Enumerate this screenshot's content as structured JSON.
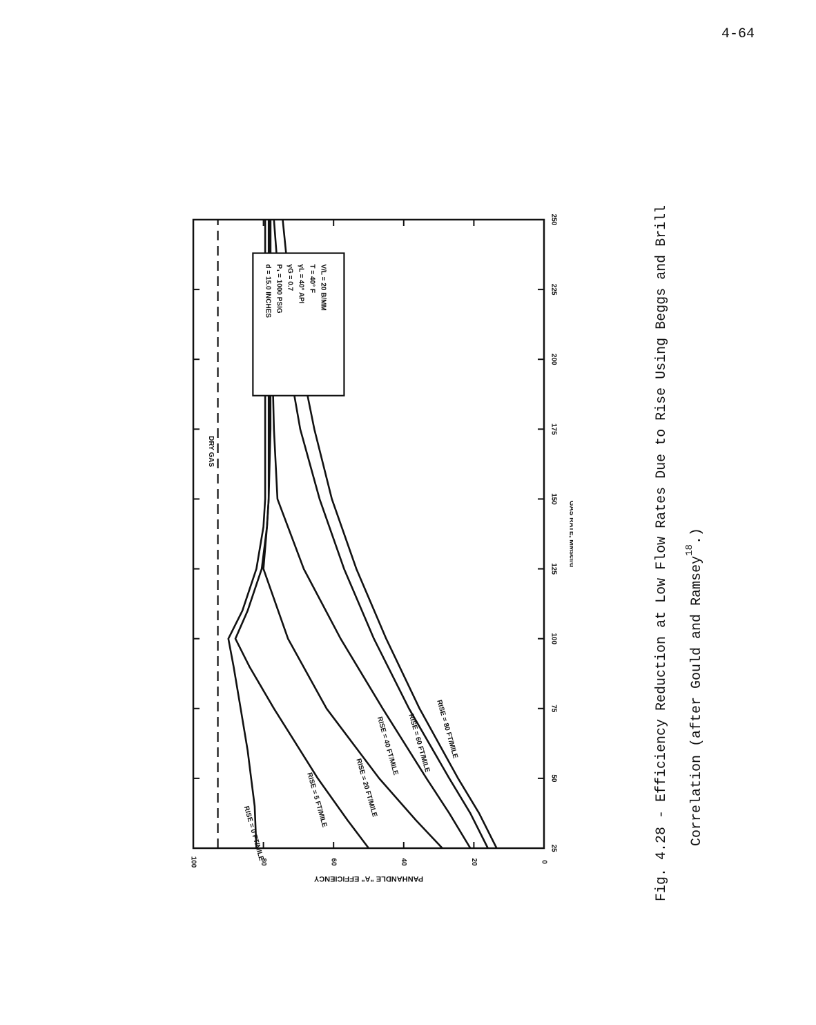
{
  "page_number": "4-64",
  "caption": {
    "line1": "Fig. 4.28 - Efficiency Reduction at Low Flow Rates Due to Rise Using Beggs and Brill",
    "line2_before": "Correlation (after Gould and Ramsey",
    "line2_sup": "18",
    "line2_after": ".)"
  },
  "chart_data": {
    "type": "line",
    "title": "",
    "xlabel": "GAS RATE, MMscf/d",
    "ylabel": "PANHANDLE \"A\" EFFICIENCY",
    "xlim": [
      25,
      250
    ],
    "ylim": [
      0,
      100
    ],
    "x_ticks": [
      25,
      50,
      75,
      100,
      125,
      150,
      175,
      200,
      225,
      250
    ],
    "y_ticks": [
      0,
      20,
      40,
      60,
      80,
      100
    ],
    "grid": false,
    "legend": "none",
    "series": [
      {
        "name": "DRY GAS",
        "style": "dashed",
        "points": [
          [
            25,
            93
          ],
          [
            250,
            93
          ]
        ]
      },
      {
        "name": "RISE = 0 FT/MILE",
        "points": [
          [
            25,
            82
          ],
          [
            40,
            82.5
          ],
          [
            50,
            83.5
          ],
          [
            60,
            84.5
          ],
          [
            75,
            86.5
          ],
          [
            90,
            88.5
          ],
          [
            100,
            90
          ],
          [
            110,
            86
          ],
          [
            125,
            82
          ],
          [
            140,
            80
          ],
          [
            150,
            79.5
          ],
          [
            175,
            79.5
          ],
          [
            200,
            79.5
          ],
          [
            225,
            79.5
          ],
          [
            250,
            79.5
          ]
        ]
      },
      {
        "name": "RISE = 5 FT/MILE",
        "points": [
          [
            25,
            50
          ],
          [
            35,
            56
          ],
          [
            50,
            64.5
          ],
          [
            65,
            72
          ],
          [
            75,
            77
          ],
          [
            90,
            84
          ],
          [
            100,
            88
          ],
          [
            110,
            84.5
          ],
          [
            125,
            80.5
          ],
          [
            140,
            79
          ],
          [
            150,
            78.5
          ],
          [
            175,
            78.5
          ],
          [
            200,
            78.5
          ],
          [
            225,
            78.5
          ],
          [
            250,
            78.5
          ]
        ]
      },
      {
        "name": "RISE = 20 FT/MILE",
        "points": [
          [
            25,
            29
          ],
          [
            35,
            36.5
          ],
          [
            50,
            47
          ],
          [
            75,
            62
          ],
          [
            100,
            73
          ],
          [
            125,
            80
          ],
          [
            140,
            79
          ],
          [
            150,
            78.5
          ],
          [
            175,
            78
          ],
          [
            200,
            78
          ],
          [
            225,
            78
          ],
          [
            250,
            78
          ]
        ]
      },
      {
        "name": "RISE = 40 FT/MILE",
        "points": [
          [
            25,
            21
          ],
          [
            37.5,
            27
          ],
          [
            50,
            33.5
          ],
          [
            75,
            46
          ],
          [
            100,
            58
          ],
          [
            125,
            68.5
          ],
          [
            150,
            76
          ],
          [
            175,
            77
          ],
          [
            200,
            77.5
          ],
          [
            225,
            78
          ],
          [
            250,
            78
          ]
        ]
      },
      {
        "name": "RISE = 60 FT/MILE",
        "points": [
          [
            25,
            16
          ],
          [
            37.5,
            21
          ],
          [
            50,
            27
          ],
          [
            75,
            38.5
          ],
          [
            100,
            48.5
          ],
          [
            125,
            57
          ],
          [
            150,
            64
          ],
          [
            175,
            69.5
          ],
          [
            200,
            73
          ],
          [
            225,
            75.5
          ],
          [
            250,
            77
          ]
        ]
      },
      {
        "name": "RISE = 80 FT/MILE",
        "points": [
          [
            25,
            13.5
          ],
          [
            37.5,
            18.5
          ],
          [
            50,
            24.5
          ],
          [
            75,
            35.5
          ],
          [
            100,
            45
          ],
          [
            125,
            53.5
          ],
          [
            150,
            60.5
          ],
          [
            175,
            65.5
          ],
          [
            200,
            69.5
          ],
          [
            225,
            72.5
          ],
          [
            250,
            74.5
          ]
        ]
      }
    ],
    "series_labels": [
      {
        "series": 1,
        "text": "RISE = 0 FT/MILE",
        "x": 40,
        "y": 85
      },
      {
        "series": 2,
        "text": "RISE = 5 FT/MILE",
        "x": 52,
        "y": 67
      },
      {
        "series": 3,
        "text": "RISE = 20 FT/MILE",
        "x": 57,
        "y": 53
      },
      {
        "series": 4,
        "text": "RISE = 40 FT/MILE",
        "x": 72,
        "y": 47
      },
      {
        "series": 5,
        "text": "RISE = 60 FT/MILE",
        "x": 73,
        "y": 38
      },
      {
        "series": 6,
        "text": "RISE = 80 FT/MILE",
        "x": 78,
        "y": 30
      }
    ],
    "dry_gas_label": {
      "text": "DRY GAS",
      "x": 167,
      "y": 95
    },
    "parameters_box": {
      "lines": [
        "d = 15.0 INCHES",
        "P₁ = 1000 PSIG",
        "γG = 0.7",
        "γL = 40° API",
        "T = 40° F",
        "V/L = 20 B/MM"
      ],
      "x_range": [
        187,
        238
      ],
      "y_range": [
        57,
        83
      ]
    }
  }
}
